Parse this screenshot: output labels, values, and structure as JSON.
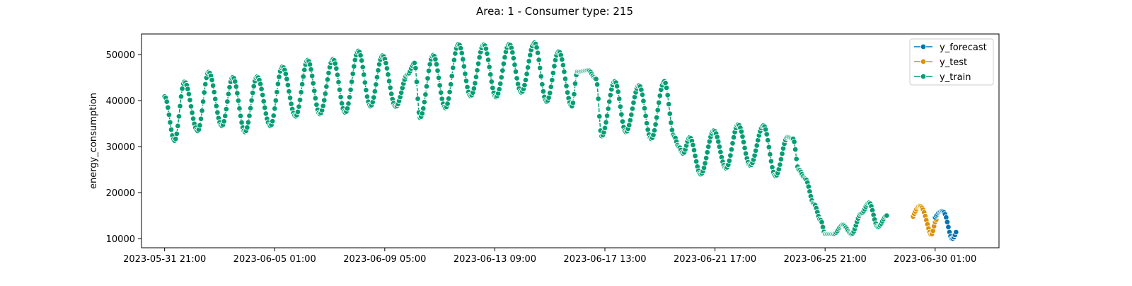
{
  "chart_data": {
    "type": "line",
    "title": "Area: 1 - Consumer type: 215",
    "xlabel": "",
    "ylabel": "energy_consumption",
    "x_type": "datetime",
    "x_step": "1 hour",
    "xlim": [
      "2023-05-31 00:00",
      "2023-07-02 11:00"
    ],
    "ylim": [
      8000,
      54500
    ],
    "yticks": [
      10000,
      20000,
      30000,
      40000,
      50000
    ],
    "xticks": [
      "2023-05-31 21:00",
      "2023-06-05 01:00",
      "2023-06-09 05:00",
      "2023-06-13 09:00",
      "2023-06-17 13:00",
      "2023-06-21 17:00",
      "2023-06-25 21:00",
      "2023-06-30 01:00"
    ],
    "grid": false,
    "legend_position": "top-right",
    "marker": "circle",
    "series": [
      {
        "name": "y_forecast",
        "color": "#0173b2",
        "x_start": "2023-06-30 01:00",
        "values": [
          14600,
          15000,
          15300,
          15600,
          15800,
          15900,
          16000,
          15900,
          15700,
          15300,
          14600,
          13600,
          12500,
          11400,
          10500,
          10000,
          10000,
          10300,
          10800,
          11400
        ]
      },
      {
        "name": "y_test",
        "color": "#de8f05",
        "x_start": "2023-06-29 05:00",
        "values": [
          14800,
          15400,
          15900,
          16400,
          16800,
          17000,
          17100,
          17000,
          16700,
          16300,
          15700,
          14900,
          14000,
          13100,
          12200,
          11400,
          10900,
          11000,
          11700,
          12700,
          13600,
          14100
        ]
      },
      {
        "name": "y_train",
        "color": "#029e73",
        "x_start": "2023-05-31 21:00",
        "anchors": [
          [
            "2023-05-31 21:00",
            40900
          ],
          [
            "2023-06-01 06:00",
            31300
          ],
          [
            "2023-06-01 15:00",
            44100
          ],
          [
            "2023-06-02 03:00",
            33400
          ],
          [
            "2023-06-02 13:00",
            46200
          ],
          [
            "2023-06-03 01:00",
            34500
          ],
          [
            "2023-06-03 11:00",
            45100
          ],
          [
            "2023-06-03 22:00",
            33200
          ],
          [
            "2023-06-04 09:00",
            45200
          ],
          [
            "2023-06-04 21:00",
            34500
          ],
          [
            "2023-06-05 08:00",
            47400
          ],
          [
            "2023-06-05 20:00",
            36600
          ],
          [
            "2023-06-06 07:00",
            48800
          ],
          [
            "2023-06-06 18:00",
            37100
          ],
          [
            "2023-06-07 06:00",
            49000
          ],
          [
            "2023-06-07 17:00",
            37400
          ],
          [
            "2023-06-08 05:00",
            50800
          ],
          [
            "2023-06-08 16:00",
            38800
          ],
          [
            "2023-06-09 03:00",
            49800
          ],
          [
            "2023-06-09 15:00",
            38700
          ],
          [
            "2023-06-10 02:00",
            45800
          ],
          [
            "2023-06-10 08:00",
            48200
          ],
          [
            "2023-06-10 13:00",
            36300
          ],
          [
            "2023-06-11 01:00",
            49900
          ],
          [
            "2023-06-11 12:00",
            38400
          ],
          [
            "2023-06-12 00:00",
            52300
          ],
          [
            "2023-06-12 11:00",
            41000
          ],
          [
            "2023-06-12 23:00",
            52200
          ],
          [
            "2023-06-13 10:00",
            40800
          ],
          [
            "2023-06-13 22:00",
            52300
          ],
          [
            "2023-06-14 09:00",
            41800
          ],
          [
            "2023-06-14 21:00",
            52600
          ],
          [
            "2023-06-15 08:00",
            39800
          ],
          [
            "2023-06-15 19:00",
            50700
          ],
          [
            "2023-06-16 07:00",
            38800
          ],
          [
            "2023-06-16 12:00",
            46300
          ],
          [
            "2023-06-16 22:00",
            46600
          ],
          [
            "2023-06-17 05:00",
            44700
          ],
          [
            "2023-06-17 10:00",
            32300
          ],
          [
            "2023-06-17 22:00",
            44200
          ],
          [
            "2023-06-18 08:00",
            33200
          ],
          [
            "2023-06-18 20:00",
            43300
          ],
          [
            "2023-06-19 07:00",
            31700
          ],
          [
            "2023-06-19 19:00",
            44200
          ],
          [
            "2023-06-20 04:00",
            32200
          ],
          [
            "2023-06-20 08:00",
            30000
          ],
          [
            "2023-06-20 12:00",
            28500
          ],
          [
            "2023-06-20 18:00",
            32000
          ],
          [
            "2023-06-21 04:00",
            24000
          ],
          [
            "2023-06-21 16:00",
            33500
          ],
          [
            "2023-06-22 03:00",
            25300
          ],
          [
            "2023-06-22 14:00",
            34800
          ],
          [
            "2023-06-23 01:00",
            25900
          ],
          [
            "2023-06-23 13:00",
            34600
          ],
          [
            "2023-06-24 00:00",
            23600
          ],
          [
            "2023-06-24 11:00",
            32100
          ],
          [
            "2023-06-24 16:00",
            31700
          ],
          [
            "2023-06-24 21:00",
            25000
          ],
          [
            "2023-06-25 03:00",
            23000
          ],
          [
            "2023-06-25 11:00",
            17500
          ],
          [
            "2023-06-25 17:00",
            14000
          ],
          [
            "2023-06-25 21:00",
            11000
          ],
          [
            "2023-06-26 05:00",
            11000
          ],
          [
            "2023-06-26 13:00",
            13000
          ],
          [
            "2023-06-26 21:00",
            11000
          ],
          [
            "2023-06-27 06:00",
            15500
          ],
          [
            "2023-06-27 13:00",
            17800
          ],
          [
            "2023-06-27 21:00",
            12500
          ],
          [
            "2023-06-28 05:00",
            15000
          ]
        ]
      }
    ]
  }
}
